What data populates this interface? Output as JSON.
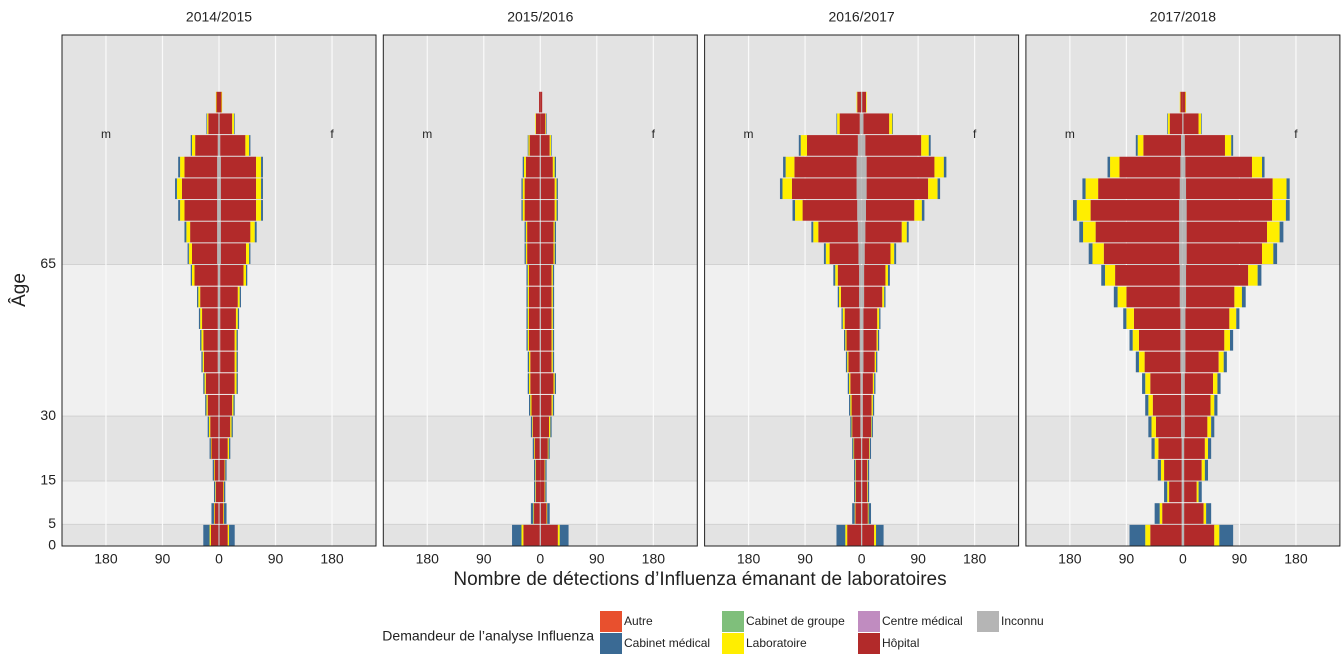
{
  "chart_data": {
    "type": "pyramid",
    "x_label": "Nombre de détections d’Influenza émanant de laboratoires",
    "y_label": "Âge",
    "legend_title": "Demandeur de l’analyse Influenza",
    "legend": [
      {
        "name": "Autre",
        "color": "#e8502e"
      },
      {
        "name": "Cabinet médical",
        "color": "#3a6a94"
      },
      {
        "name": "Cabinet de groupe",
        "color": "#7fbf7b"
      },
      {
        "name": "Laboratoire",
        "color": "#ffee00"
      },
      {
        "name": "Centre médical",
        "color": "#c08cc0"
      },
      {
        "name": "Hôpital",
        "color": "#b22a2a"
      },
      {
        "name": "Inconnu",
        "color": "#b5b5b5"
      }
    ],
    "sex_labels": [
      "m",
      "f"
    ],
    "xlim": [
      -250,
      250
    ],
    "xticks": [
      {
        "value": -180,
        "label": "180"
      },
      {
        "value": -90,
        "label": "90"
      },
      0,
      90,
      180
    ],
    "ylim": [
      0,
      118
    ],
    "yticks": [
      0,
      5,
      15,
      30,
      65
    ],
    "y": [
      0,
      5,
      10,
      15,
      20,
      25,
      30,
      35,
      40,
      45,
      50,
      55,
      60,
      65,
      70,
      75,
      80,
      85,
      90,
      95,
      100
    ],
    "facets": [
      {
        "title": "2014/2015",
        "series": [
          {
            "name": "Inconnu",
            "color": "#b5b5b5",
            "m": [
              1,
              1,
              0,
              1,
              1,
              1,
              1,
              1,
              2,
              2,
              2,
              2,
              2,
              3,
              3,
              3,
              3,
              3,
              2,
              1,
              0
            ],
            "f": [
              1,
              1,
              0,
              1,
              1,
              1,
              1,
              1,
              2,
              2,
              2,
              2,
              2,
              3,
              3,
              3,
              3,
              3,
              2,
              1,
              0
            ]
          },
          {
            "name": "Hôpital",
            "color": "#b22a2a",
            "m": [
              12,
              6,
              5,
              6,
              11,
              13,
              17,
              20,
              22,
              23,
              25,
              28,
              37,
              40,
              43,
              52,
              56,
              52,
              36,
              16,
              4
            ],
            "f": [
              13,
              6,
              7,
              8,
              13,
              17,
              20,
              24,
              23,
              23,
              25,
              28,
              37,
              40,
              47,
              56,
              56,
              56,
              40,
              20,
              4
            ]
          },
          {
            "name": "Laboratoire",
            "color": "#ffee00",
            "m": [
              2,
              1,
              1,
              1,
              1,
              2,
              2,
              2,
              2,
              3,
              3,
              3,
              4,
              5,
              6,
              7,
              8,
              7,
              5,
              2,
              1
            ],
            "f": [
              2,
              1,
              1,
              1,
              2,
              2,
              2,
              3,
              3,
              3,
              3,
              3,
              4,
              5,
              7,
              8,
              8,
              8,
              6,
              3,
              1
            ]
          },
          {
            "name": "Cabinet médical",
            "color": "#3a6a94",
            "m": [
              10,
              4,
              2,
              2,
              2,
              2,
              2,
              2,
              2,
              2,
              2,
              2,
              2,
              2,
              3,
              3,
              3,
              3,
              2,
              1,
              0
            ],
            "f": [
              9,
              4,
              2,
              2,
              2,
              2,
              2,
              2,
              2,
              2,
              2,
              2,
              2,
              2,
              3,
              3,
              3,
              3,
              2,
              1,
              0
            ]
          }
        ]
      },
      {
        "title": "2015/2016",
        "series": [
          {
            "name": "Inconnu",
            "color": "#b5b5b5",
            "m": [
              1,
              1,
              0,
              0,
              1,
              1,
              1,
              1,
              1,
              1,
              1,
              1,
              1,
              1,
              1,
              1,
              1,
              1,
              1,
              0,
              0
            ],
            "f": [
              1,
              1,
              0,
              0,
              1,
              1,
              1,
              1,
              1,
              1,
              1,
              1,
              1,
              1,
              1,
              1,
              1,
              1,
              1,
              0,
              0
            ]
          },
          {
            "name": "Hôpital",
            "color": "#b22a2a",
            "m": [
              26,
              9,
              7,
              7,
              8,
              11,
              13,
              15,
              15,
              17,
              17,
              17,
              17,
              20,
              20,
              24,
              24,
              22,
              16,
              7,
              2
            ],
            "f": [
              27,
              9,
              7,
              7,
              11,
              13,
              17,
              20,
              17,
              17,
              17,
              17,
              17,
              20,
              20,
              22,
              22,
              19,
              14,
              8,
              3
            ]
          },
          {
            "name": "Laboratoire",
            "color": "#ffee00",
            "m": [
              3,
              1,
              1,
              1,
              1,
              1,
              2,
              2,
              2,
              2,
              2,
              2,
              2,
              2,
              2,
              3,
              3,
              3,
              2,
              1,
              0
            ],
            "f": [
              3,
              1,
              1,
              1,
              1,
              2,
              2,
              2,
              2,
              2,
              2,
              2,
              2,
              2,
              2,
              3,
              3,
              3,
              2,
              1,
              0
            ]
          },
          {
            "name": "Cabinet médical",
            "color": "#3a6a94",
            "m": [
              15,
              4,
              2,
              2,
              2,
              2,
              2,
              2,
              2,
              2,
              2,
              2,
              2,
              2,
              2,
              2,
              2,
              2,
              1,
              0,
              0
            ],
            "f": [
              14,
              4,
              2,
              2,
              2,
              2,
              2,
              2,
              2,
              2,
              2,
              2,
              2,
              2,
              2,
              2,
              2,
              2,
              1,
              1,
              0
            ]
          }
        ]
      },
      {
        "title": "2016/2017",
        "series": [
          {
            "name": "Inconnu",
            "color": "#b5b5b5",
            "m": [
              1,
              1,
              1,
              1,
              1,
              2,
              2,
              2,
              3,
              3,
              3,
              4,
              4,
              5,
              6,
              7,
              8,
              8,
              6,
              3,
              1
            ],
            "f": [
              1,
              1,
              1,
              1,
              1,
              2,
              2,
              2,
              3,
              3,
              3,
              4,
              4,
              5,
              6,
              7,
              8,
              8,
              6,
              3,
              1
            ]
          },
          {
            "name": "Hôpital",
            "color": "#b22a2a",
            "m": [
              22,
              9,
              8,
              8,
              11,
              13,
              14,
              16,
              18,
              21,
              24,
              29,
              34,
              46,
              63,
              87,
              103,
              99,
              81,
              32,
              6
            ],
            "f": [
              19,
              9,
              8,
              8,
              11,
              13,
              14,
              16,
              18,
              21,
              22,
              29,
              34,
              41,
              58,
              77,
              98,
              108,
              89,
              41,
              6
            ]
          },
          {
            "name": "Laboratoire",
            "color": "#ffee00",
            "m": [
              3,
              1,
              1,
              1,
              1,
              1,
              2,
              2,
              2,
              2,
              3,
              3,
              4,
              6,
              8,
              12,
              15,
              14,
              10,
              4,
              1
            ],
            "f": [
              3,
              1,
              1,
              1,
              1,
              1,
              2,
              2,
              2,
              2,
              3,
              3,
              4,
              6,
              8,
              12,
              15,
              15,
              12,
              5,
              1
            ]
          },
          {
            "name": "Cabinet médical",
            "color": "#3a6a94",
            "m": [
              14,
              4,
              2,
              2,
              2,
              2,
              2,
              2,
              2,
              2,
              2,
              2,
              3,
              3,
              3,
              4,
              4,
              4,
              3,
              1,
              0
            ],
            "f": [
              12,
              4,
              2,
              2,
              2,
              2,
              2,
              2,
              2,
              2,
              2,
              2,
              3,
              3,
              3,
              4,
              4,
              4,
              3,
              1,
              0
            ]
          }
        ]
      },
      {
        "title": "2017/2018",
        "series": [
          {
            "name": "Inconnu",
            "color": "#b5b5b5",
            "m": [
              2,
              2,
              2,
              2,
              2,
              3,
              3,
              3,
              4,
              4,
              4,
              5,
              5,
              6,
              6,
              6,
              5,
              4,
              3,
              1,
              0
            ],
            "f": [
              2,
              2,
              2,
              2,
              2,
              3,
              3,
              3,
              4,
              4,
              4,
              5,
              5,
              6,
              6,
              6,
              5,
              4,
              3,
              1,
              0
            ]
          },
          {
            "name": "Hôpital",
            "color": "#b22a2a",
            "m": [
              50,
              31,
              20,
              28,
              37,
              40,
              45,
              49,
              57,
              66,
              74,
              85,
              103,
              120,
              133,
              141,
              130,
              97,
              60,
              20,
              4
            ],
            "f": [
              48,
              31,
              20,
              28,
              33,
              36,
              41,
              45,
              53,
              62,
              70,
              77,
              99,
              120,
              128,
              136,
              138,
              106,
              64,
              24,
              4
            ]
          },
          {
            "name": "Laboratoire",
            "color": "#ffee00",
            "m": [
              8,
              4,
              3,
              5,
              6,
              7,
              7,
              8,
              9,
              10,
              12,
              14,
              16,
              18,
              20,
              22,
              20,
              15,
              9,
              3,
              1
            ],
            "f": [
              8,
              4,
              3,
              5,
              5,
              6,
              6,
              7,
              8,
              9,
              11,
              12,
              15,
              18,
              20,
              22,
              22,
              16,
              10,
              4,
              1
            ]
          },
          {
            "name": "Cabinet médical",
            "color": "#3a6a94",
            "m": [
              25,
              8,
              5,
              5,
              5,
              5,
              5,
              5,
              5,
              5,
              5,
              6,
              6,
              6,
              6,
              6,
              5,
              4,
              3,
              1,
              0
            ],
            "f": [
              22,
              8,
              5,
              5,
              5,
              5,
              5,
              5,
              5,
              5,
              5,
              6,
              6,
              6,
              6,
              6,
              5,
              4,
              3,
              1,
              0
            ]
          }
        ]
      }
    ]
  }
}
